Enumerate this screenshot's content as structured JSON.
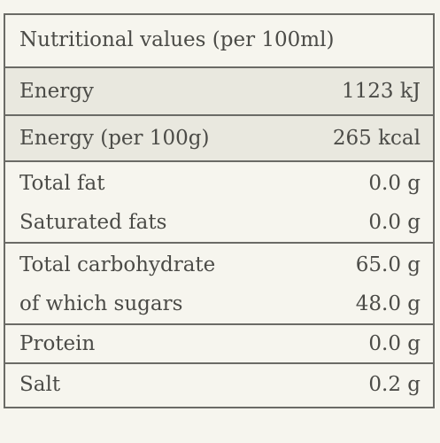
{
  "table": {
    "header": "Nutritional values (per 100ml)",
    "rows": [
      {
        "lines": [
          {
            "label": "Energy",
            "value": "1123 kJ"
          }
        ]
      },
      {
        "lines": [
          {
            "label": "Energy (per 100g)",
            "value": "265 kcal"
          }
        ]
      },
      {
        "lines": [
          {
            "label": "Total fat",
            "value": "0.0 g"
          },
          {
            "label": "Saturated fats",
            "value": "0.0 g"
          }
        ]
      },
      {
        "lines": [
          {
            "label": "Total carbohydrate",
            "value": "65.0 g"
          },
          {
            "label": "of which sugars",
            "value": "48.0 g"
          }
        ]
      },
      {
        "lines": [
          {
            "label": "Protein",
            "value": "0.0 g"
          }
        ]
      },
      {
        "lines": [
          {
            "label": "Salt",
            "value": "0.2 g"
          }
        ]
      }
    ]
  }
}
